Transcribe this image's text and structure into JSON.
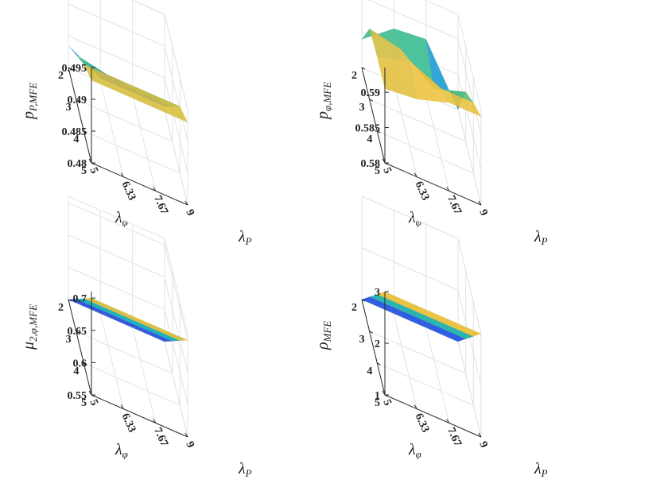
{
  "chart_data": [
    {
      "type": "surface",
      "xlabel": "λ_P",
      "ylabel": "λ_φ",
      "zlabel": "p_{P,MFE}",
      "x": [
        5,
        6.33,
        7.67,
        9
      ],
      "x_ticks": [
        "5",
        "6.33",
        "7.67",
        "9"
      ],
      "y": [
        2,
        3,
        4,
        5
      ],
      "y_ticks": [
        "2",
        "3",
        "4",
        "5"
      ],
      "zlim": [
        0.48,
        0.495
      ],
      "z_ticks": [
        "0.48",
        "0.485",
        "0.49",
        "0.495"
      ],
      "z": [
        [
          0.4835,
          0.4805,
          0.4805,
          0.4805
        ],
        [
          0.487,
          0.486,
          0.4855,
          0.4855
        ],
        [
          0.4905,
          0.4905,
          0.4905,
          0.4905
        ],
        [
          0.493,
          0.493,
          0.493,
          0.493
        ]
      ],
      "grid": true
    },
    {
      "type": "surface",
      "xlabel": "λ_P",
      "ylabel": "λ_φ",
      "zlabel": "p_{φ,MFE}",
      "x": [
        5,
        6.33,
        7.67,
        9
      ],
      "x_ticks": [
        "5",
        "6.33",
        "7.67",
        "9"
      ],
      "y": [
        2,
        3,
        4,
        5
      ],
      "y_ticks": [
        "2",
        "3",
        "4",
        "5"
      ],
      "zlim": [
        0.58,
        0.5935
      ],
      "z_ticks": [
        "0.58",
        "0.585",
        "0.59"
      ],
      "z": [
        [
          0.584,
          0.5875,
          0.588,
          0.58
        ],
        [
          0.59,
          0.589,
          0.5855,
          0.587
        ],
        [
          0.5905,
          0.592,
          0.59,
          0.59
        ],
        [
          0.5905,
          0.591,
          0.5925,
          0.5925
        ]
      ],
      "grid": true
    },
    {
      "type": "surface",
      "xlabel": "λ_P",
      "ylabel": "λ_φ",
      "zlabel": "μ_{2,φ,MFE}",
      "x": [
        5,
        6.33,
        7.67,
        9
      ],
      "x_ticks": [
        "5",
        "6.33",
        "7.67",
        "9"
      ],
      "y": [
        2,
        3,
        4,
        5
      ],
      "y_ticks": [
        "2",
        "3",
        "4",
        "5"
      ],
      "zlim": [
        0.55,
        0.71
      ],
      "z_ticks": [
        "0.55",
        "0.6",
        "0.65",
        "0.7"
      ],
      "z": [
        [
          0.55,
          0.55,
          0.55,
          0.55
        ],
        [
          0.6,
          0.6,
          0.6,
          0.6
        ],
        [
          0.65,
          0.65,
          0.65,
          0.65
        ],
        [
          0.7,
          0.7,
          0.7,
          0.7
        ]
      ],
      "grid": true
    },
    {
      "type": "surface",
      "xlabel": "λ_P",
      "ylabel": "λ_φ",
      "zlabel": "ρ_{MFE}",
      "x": [
        5,
        6.33,
        7.67,
        9
      ],
      "x_ticks": [
        "5",
        "6.33",
        "7.67",
        "9"
      ],
      "y": [
        2,
        3,
        4,
        5
      ],
      "y_ticks": [
        "2",
        "3",
        "4",
        "5"
      ],
      "zlim": [
        1,
        3
      ],
      "z_ticks": [
        "1",
        "2",
        "3"
      ],
      "z": [
        [
          1,
          1,
          1,
          1
        ],
        [
          1.67,
          1.67,
          1.67,
          1.67
        ],
        [
          2.33,
          2.33,
          2.33,
          2.33
        ],
        [
          3,
          3,
          3,
          3
        ]
      ],
      "grid": true
    }
  ]
}
